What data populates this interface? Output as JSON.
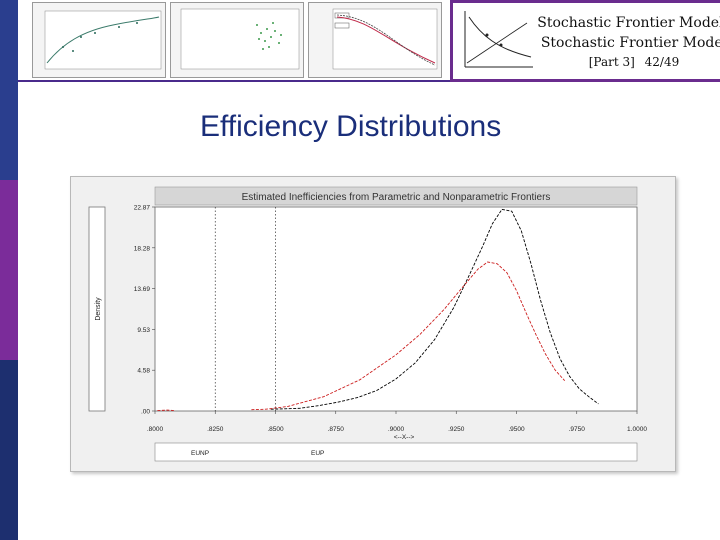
{
  "slide": {
    "title": "Efficiency Distributions",
    "header_line1": "Stochastic Frontier Models",
    "header_line2": "Stochastic Frontier Model",
    "part": "[Part 3]",
    "page": "42/49"
  },
  "colors": {
    "sidebar_top": "#2a3e8e",
    "sidebar_mid": "#7b2c9a",
    "sidebar_bottom": "#1d2f6f",
    "accent": "#6a2c8e",
    "title": "#1a2e7a"
  },
  "chart_data": {
    "type": "line",
    "title": "Estimated Inefficiencies from Parametric and Nonparametric Frontiers",
    "ylabel": "Density",
    "xlabel": "<--X-->",
    "xlim": [
      0.8,
      1.0
    ],
    "ylim": [
      0,
      22.87
    ],
    "x_ticks": [
      ".8000",
      ".8250",
      ".8500",
      ".8750",
      ".9000",
      ".9250",
      ".9500",
      ".9750",
      "1.0000"
    ],
    "y_ticks": [
      ".00",
      "4.58",
      "9.53",
      "13.69",
      "18.28",
      "22.87"
    ],
    "grid": false,
    "legend_position": "bottom",
    "series": [
      {
        "name": "EUNP",
        "color": "#000000",
        "dash": "dashed",
        "x": [
          0.848,
          0.854,
          0.86,
          0.868,
          0.876,
          0.884,
          0.892,
          0.9,
          0.908,
          0.916,
          0.924,
          0.93,
          0.936,
          0.94,
          0.944,
          0.948,
          0.952,
          0.956,
          0.96,
          0.964,
          0.968,
          0.972,
          0.976,
          0.98,
          0.984
        ],
        "y": [
          0.2,
          0.25,
          0.3,
          0.6,
          1.0,
          1.5,
          2.3,
          3.6,
          5.4,
          8.0,
          11.6,
          15.0,
          18.5,
          21.0,
          22.6,
          22.4,
          20.2,
          16.5,
          12.4,
          8.8,
          5.9,
          3.9,
          2.5,
          1.6,
          0.8
        ]
      },
      {
        "name": "EUP",
        "color": "#cc1f1f",
        "dash": "dashed",
        "x": [
          0.801,
          0.805,
          0.808,
          0.84,
          0.846,
          0.855,
          0.87,
          0.885,
          0.9,
          0.91,
          0.92,
          0.928,
          0.934,
          0.938,
          0.942,
          0.946,
          0.95,
          0.954,
          0.958,
          0.962,
          0.966,
          0.97
        ],
        "y": [
          0.05,
          0.1,
          0.05,
          0.15,
          0.2,
          0.5,
          1.6,
          3.5,
          6.3,
          8.6,
          11.4,
          14.0,
          15.9,
          16.7,
          16.5,
          15.5,
          13.5,
          11.0,
          8.6,
          6.4,
          4.6,
          3.4
        ]
      }
    ],
    "annotations": [
      "vertical dotted lines at x = .8250 and .8500"
    ]
  }
}
